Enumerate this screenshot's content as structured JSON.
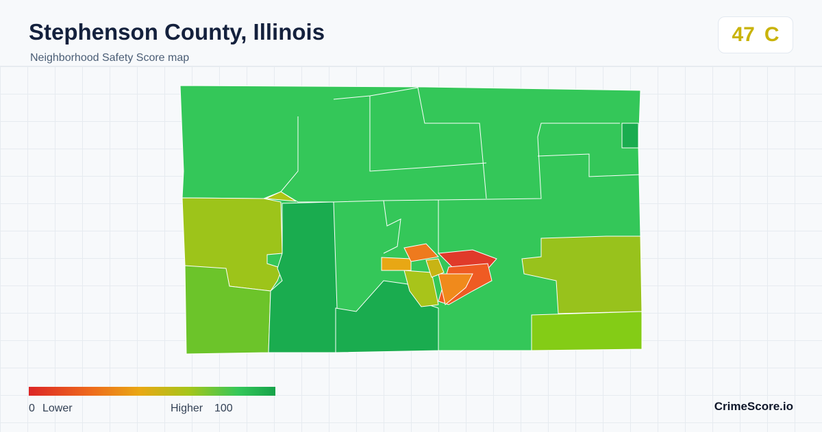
{
  "header": {
    "title": "Stephenson County, Illinois",
    "subtitle": "Neighborhood Safety Score map"
  },
  "score": {
    "value": 47,
    "grade": "C"
  },
  "legend": {
    "min": 0,
    "min_label": "Lower",
    "max_label": "Higher",
    "max": 100
  },
  "brand": "CrimeScore.io"
}
